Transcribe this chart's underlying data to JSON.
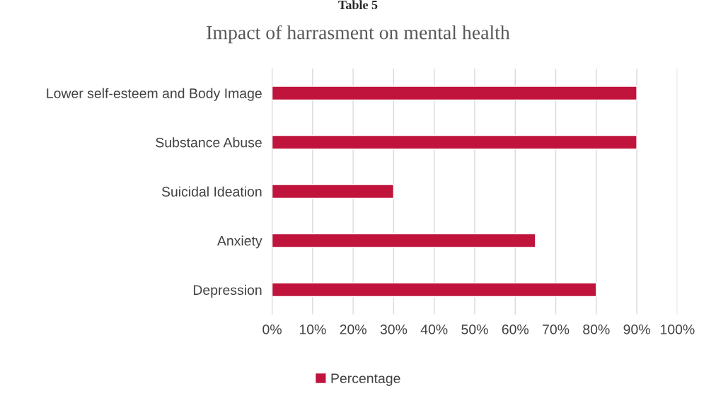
{
  "chart_data": {
    "type": "bar",
    "orientation": "horizontal",
    "title": "Impact of harrasment on mental health",
    "annotations": [
      "Table 5"
    ],
    "categories": [
      "Lower self-esteem and Body Image",
      "Substance Abuse",
      "Suicidal Ideation",
      "Anxiety",
      "Depression"
    ],
    "series": [
      {
        "name": "Percentage",
        "color": "#c0143c",
        "values": [
          90,
          90,
          30,
          65,
          80
        ]
      }
    ],
    "xlim": [
      0,
      100
    ],
    "xticks": [
      {
        "value": 0,
        "label": "0%"
      },
      {
        "value": 10,
        "label": "10%"
      },
      {
        "value": 20,
        "label": "20%"
      },
      {
        "value": 30,
        "label": "30%"
      },
      {
        "value": 40,
        "label": "40%"
      },
      {
        "value": 50,
        "label": "50%"
      },
      {
        "value": 60,
        "label": "60%"
      },
      {
        "value": 70,
        "label": "70%"
      },
      {
        "value": 80,
        "label": "80%"
      },
      {
        "value": 90,
        "label": "90%"
      },
      {
        "value": 100,
        "label": "100%"
      }
    ],
    "grid": "x",
    "legend": "bottom"
  }
}
